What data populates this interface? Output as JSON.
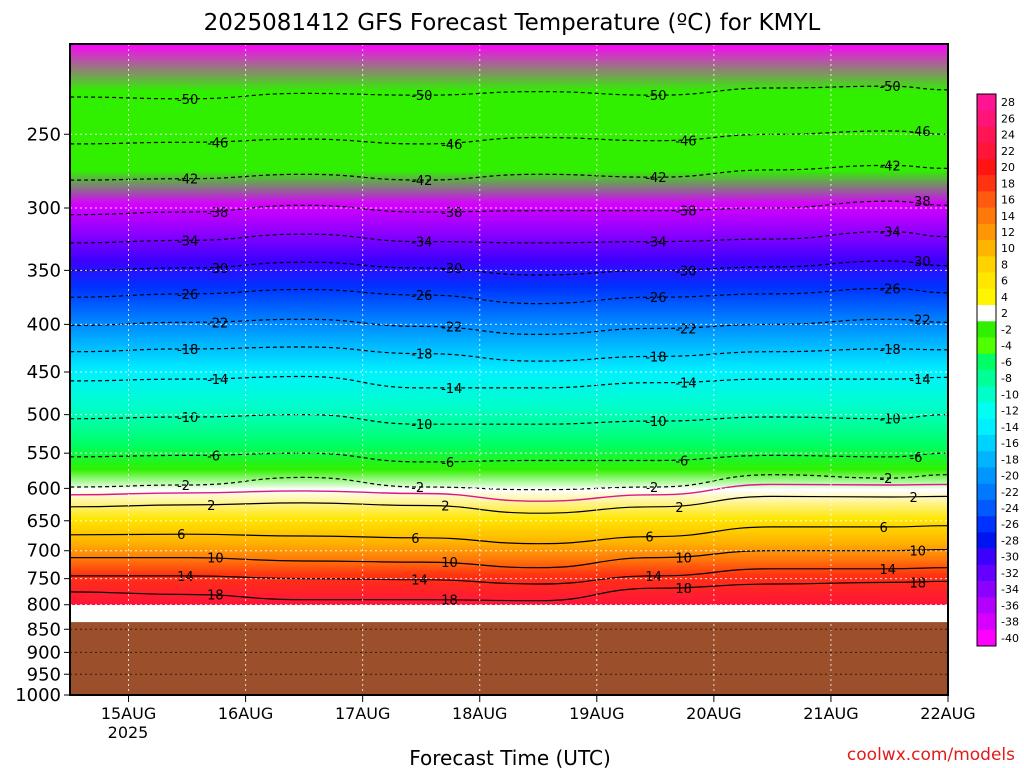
{
  "chart_data": {
    "type": "heatmap",
    "title": "2025081412 GFS Forecast Temperature (ºC) for KMYL",
    "xlabel": "Forecast Time (UTC)",
    "ylabel": "",
    "watermark": "coolwx.com/models",
    "y_scale": "log",
    "y_axis_inverted": true,
    "ylim": [
      1000,
      200
    ],
    "xlim": [
      "2025-08-14T12:00Z",
      "2025-08-22T00:00Z"
    ],
    "x_ticks": [
      {
        "x": "2025-08-15T00:00Z",
        "label": "15AUG"
      },
      {
        "x": "2025-08-16T00:00Z",
        "label": "16AUG"
      },
      {
        "x": "2025-08-17T00:00Z",
        "label": "17AUG"
      },
      {
        "x": "2025-08-18T00:00Z",
        "label": "18AUG"
      },
      {
        "x": "2025-08-19T00:00Z",
        "label": "19AUG"
      },
      {
        "x": "2025-08-20T00:00Z",
        "label": "20AUG"
      },
      {
        "x": "2025-08-21T00:00Z",
        "label": "21AUG"
      },
      {
        "x": "2025-08-22T00:00Z",
        "label": "22AUG"
      }
    ],
    "x_tick_sublabel": "2025",
    "y_ticks": [
      {
        "p": 250,
        "label": "250"
      },
      {
        "p": 300,
        "label": "300"
      },
      {
        "p": 350,
        "label": "350"
      },
      {
        "p": 400,
        "label": "400"
      },
      {
        "p": 450,
        "label": "450"
      },
      {
        "p": 500,
        "label": "500"
      },
      {
        "p": 550,
        "label": "550"
      },
      {
        "p": 600,
        "label": "600"
      },
      {
        "p": 650,
        "label": "650"
      },
      {
        "p": 700,
        "label": "700"
      },
      {
        "p": 750,
        "label": "750"
      },
      {
        "p": 800,
        "label": "800"
      },
      {
        "p": 850,
        "label": "850"
      },
      {
        "p": 900,
        "label": "900"
      },
      {
        "p": 950,
        "label": "950"
      },
      {
        "p": 1000,
        "label": "1000"
      }
    ],
    "grid": true,
    "terrain": {
      "below_hpa": 835,
      "color": "#9b4f2a"
    },
    "colorbar": {
      "placement": "right",
      "levels": [
        28,
        26,
        24,
        22,
        20,
        18,
        16,
        14,
        12,
        10,
        8,
        6,
        4,
        2,
        -2,
        -4,
        -6,
        -8,
        -10,
        -12,
        -14,
        -16,
        -18,
        -20,
        -22,
        -24,
        -26,
        -28,
        -30,
        -32,
        -34,
        -36,
        -38,
        -40
      ],
      "colors": [
        "#ff1493",
        "#ff1478",
        "#ff1456",
        "#ff143a",
        "#ff1414",
        "#ff3212",
        "#ff5a0f",
        "#ff780a",
        "#ff9606",
        "#ffb400",
        "#ffd200",
        "#ffe600",
        "#fff500",
        "#ffffff",
        "#30f000",
        "#50ff00",
        "#00ff64",
        "#00ff96",
        "#00ffc8",
        "#00fff0",
        "#00f0ff",
        "#00d2ff",
        "#00b4ff",
        "#0096ff",
        "#0078ff",
        "#005aff",
        "#0032ff",
        "#0014f0",
        "#3c00ff",
        "#6400ff",
        "#8c00ff",
        "#b400ff",
        "#d700ff",
        "#ff00ff"
      ]
    },
    "series": [
      {
        "name": "-50",
        "x": [
          "2025-08-14T12:00Z",
          "2025-08-15T12:00Z",
          "2025-08-16T12:00Z",
          "2025-08-17T12:00Z",
          "2025-08-18T12:00Z",
          "2025-08-19T12:00Z",
          "2025-08-20T12:00Z",
          "2025-08-21T12:00Z",
          "2025-08-22T00:00Z"
        ],
        "p": [
          228,
          229,
          226,
          227,
          225,
          227,
          223,
          222,
          224
        ]
      },
      {
        "name": "-46",
        "x": [
          "2025-08-14T12:00Z",
          "2025-08-15T12:00Z",
          "2025-08-16T12:00Z",
          "2025-08-17T12:00Z",
          "2025-08-18T12:00Z",
          "2025-08-19T12:00Z",
          "2025-08-20T12:00Z",
          "2025-08-21T12:00Z",
          "2025-08-22T00:00Z"
        ],
        "p": [
          256,
          255,
          253,
          256,
          252,
          254,
          250,
          248,
          250
        ]
      },
      {
        "name": "-42",
        "x": [
          "2025-08-14T12:00Z",
          "2025-08-15T12:00Z",
          "2025-08-16T12:00Z",
          "2025-08-17T12:00Z",
          "2025-08-18T12:00Z",
          "2025-08-19T12:00Z",
          "2025-08-20T12:00Z",
          "2025-08-21T12:00Z",
          "2025-08-22T00:00Z"
        ],
        "p": [
          280,
          279,
          276,
          280,
          276,
          278,
          273,
          270,
          272
        ]
      },
      {
        "name": "-38",
        "x": [
          "2025-08-14T12:00Z",
          "2025-08-15T12:00Z",
          "2025-08-16T12:00Z",
          "2025-08-17T12:00Z",
          "2025-08-18T12:00Z",
          "2025-08-19T12:00Z",
          "2025-08-20T12:00Z",
          "2025-08-21T12:00Z",
          "2025-08-22T00:00Z"
        ],
        "p": [
          305,
          303,
          298,
          303,
          302,
          302,
          300,
          295,
          298
        ]
      },
      {
        "name": "-34",
        "x": [
          "2025-08-14T12:00Z",
          "2025-08-15T12:00Z",
          "2025-08-16T12:00Z",
          "2025-08-17T12:00Z",
          "2025-08-18T12:00Z",
          "2025-08-19T12:00Z",
          "2025-08-20T12:00Z",
          "2025-08-21T12:00Z",
          "2025-08-22T00:00Z"
        ],
        "p": [
          327,
          325,
          320,
          326,
          327,
          326,
          324,
          318,
          322
        ]
      },
      {
        "name": "-30",
        "x": [
          "2025-08-14T12:00Z",
          "2025-08-15T12:00Z",
          "2025-08-16T12:00Z",
          "2025-08-17T12:00Z",
          "2025-08-18T12:00Z",
          "2025-08-19T12:00Z",
          "2025-08-20T12:00Z",
          "2025-08-21T12:00Z",
          "2025-08-22T00:00Z"
        ],
        "p": [
          350,
          348,
          343,
          348,
          354,
          350,
          347,
          342,
          346
        ]
      },
      {
        "name": "-26",
        "x": [
          "2025-08-14T12:00Z",
          "2025-08-15T12:00Z",
          "2025-08-16T12:00Z",
          "2025-08-17T12:00Z",
          "2025-08-18T12:00Z",
          "2025-08-19T12:00Z",
          "2025-08-20T12:00Z",
          "2025-08-21T12:00Z",
          "2025-08-22T00:00Z"
        ],
        "p": [
          374,
          371,
          367,
          372,
          380,
          374,
          371,
          366,
          370
        ]
      },
      {
        "name": "-22",
        "x": [
          "2025-08-14T12:00Z",
          "2025-08-15T12:00Z",
          "2025-08-16T12:00Z",
          "2025-08-17T12:00Z",
          "2025-08-18T12:00Z",
          "2025-08-19T12:00Z",
          "2025-08-20T12:00Z",
          "2025-08-21T12:00Z",
          "2025-08-22T00:00Z"
        ],
        "p": [
          401,
          398,
          395,
          402,
          410,
          404,
          400,
          395,
          398
        ]
      },
      {
        "name": "-18",
        "x": [
          "2025-08-14T12:00Z",
          "2025-08-15T12:00Z",
          "2025-08-16T12:00Z",
          "2025-08-17T12:00Z",
          "2025-08-18T12:00Z",
          "2025-08-19T12:00Z",
          "2025-08-20T12:00Z",
          "2025-08-21T12:00Z",
          "2025-08-22T00:00Z"
        ],
        "p": [
          428,
          425,
          423,
          430,
          438,
          433,
          428,
          425,
          426
        ]
      },
      {
        "name": "-14",
        "x": [
          "2025-08-14T12:00Z",
          "2025-08-15T12:00Z",
          "2025-08-16T12:00Z",
          "2025-08-17T12:00Z",
          "2025-08-18T12:00Z",
          "2025-08-19T12:00Z",
          "2025-08-20T12:00Z",
          "2025-08-21T12:00Z",
          "2025-08-22T00:00Z"
        ],
        "p": [
          460,
          458,
          455,
          468,
          468,
          462,
          458,
          458,
          456
        ]
      },
      {
        "name": "-10",
        "x": [
          "2025-08-14T12:00Z",
          "2025-08-15T12:00Z",
          "2025-08-16T12:00Z",
          "2025-08-17T12:00Z",
          "2025-08-18T12:00Z",
          "2025-08-19T12:00Z",
          "2025-08-20T12:00Z",
          "2025-08-21T12:00Z",
          "2025-08-22T00:00Z"
        ],
        "p": [
          505,
          503,
          500,
          512,
          512,
          508,
          503,
          505,
          500
        ]
      },
      {
        "name": "-6",
        "x": [
          "2025-08-14T12:00Z",
          "2025-08-15T12:00Z",
          "2025-08-16T12:00Z",
          "2025-08-17T12:00Z",
          "2025-08-18T12:00Z",
          "2025-08-19T12:00Z",
          "2025-08-20T12:00Z",
          "2025-08-21T12:00Z",
          "2025-08-22T00:00Z"
        ],
        "p": [
          555,
          553,
          550,
          562,
          560,
          560,
          553,
          555,
          550
        ]
      },
      {
        "name": "-2",
        "x": [
          "2025-08-14T12:00Z",
          "2025-08-15T12:00Z",
          "2025-08-16T12:00Z",
          "2025-08-17T12:00Z",
          "2025-08-18T12:00Z",
          "2025-08-19T12:00Z",
          "2025-08-20T12:00Z",
          "2025-08-21T12:00Z",
          "2025-08-22T00:00Z"
        ],
        "p": [
          598,
          595,
          584,
          598,
          602,
          598,
          580,
          585,
          580
        ]
      },
      {
        "name": "2",
        "x": [
          "2025-08-14T12:00Z",
          "2025-08-15T12:00Z",
          "2025-08-16T12:00Z",
          "2025-08-17T12:00Z",
          "2025-08-18T12:00Z",
          "2025-08-19T12:00Z",
          "2025-08-20T12:00Z",
          "2025-08-21T12:00Z",
          "2025-08-22T00:00Z"
        ],
        "p": [
          628,
          625,
          622,
          626,
          638,
          628,
          612,
          613,
          612
        ]
      },
      {
        "name": "6",
        "x": [
          "2025-08-14T12:00Z",
          "2025-08-15T12:00Z",
          "2025-08-16T12:00Z",
          "2025-08-17T12:00Z",
          "2025-08-18T12:00Z",
          "2025-08-19T12:00Z",
          "2025-08-20T12:00Z",
          "2025-08-21T12:00Z",
          "2025-08-22T00:00Z"
        ],
        "p": [
          673,
          672,
          675,
          678,
          688,
          676,
          660,
          660,
          658
        ]
      },
      {
        "name": "10",
        "x": [
          "2025-08-14T12:00Z",
          "2025-08-15T12:00Z",
          "2025-08-16T12:00Z",
          "2025-08-17T12:00Z",
          "2025-08-18T12:00Z",
          "2025-08-19T12:00Z",
          "2025-08-20T12:00Z",
          "2025-08-21T12:00Z",
          "2025-08-22T00:00Z"
        ],
        "p": [
          712,
          712,
          718,
          720,
          730,
          712,
          700,
          700,
          698
        ]
      },
      {
        "name": "14",
        "x": [
          "2025-08-14T12:00Z",
          "2025-08-15T12:00Z",
          "2025-08-16T12:00Z",
          "2025-08-17T12:00Z",
          "2025-08-18T12:00Z",
          "2025-08-19T12:00Z",
          "2025-08-20T12:00Z",
          "2025-08-21T12:00Z",
          "2025-08-22T00:00Z"
        ],
        "p": [
          745,
          745,
          750,
          752,
          760,
          745,
          732,
          732,
          730
        ]
      },
      {
        "name": "18",
        "x": [
          "2025-08-14T12:00Z",
          "2025-08-15T12:00Z",
          "2025-08-16T12:00Z",
          "2025-08-17T12:00Z",
          "2025-08-18T12:00Z",
          "2025-08-19T12:00Z",
          "2025-08-20T12:00Z",
          "2025-08-21T12:00Z",
          "2025-08-22T00:00Z"
        ],
        "p": [
          775,
          780,
          790,
          790,
          792,
          768,
          760,
          757,
          755
        ]
      }
    ]
  }
}
